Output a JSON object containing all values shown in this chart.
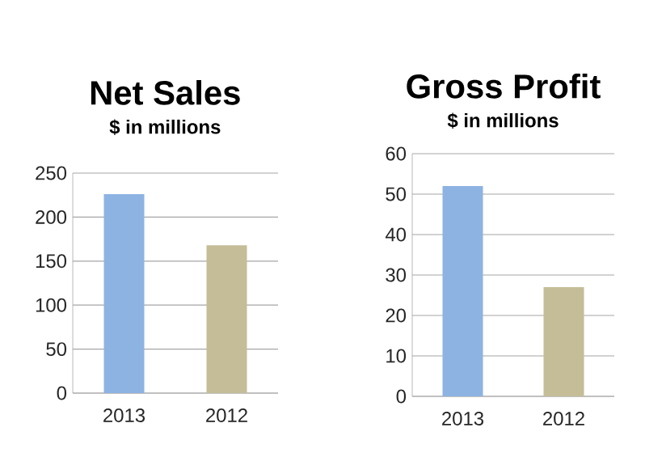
{
  "chart_data": [
    {
      "type": "bar",
      "title": "Net Sales",
      "subtitle": "$ in millions",
      "categories": [
        "2013",
        "2012"
      ],
      "values": [
        226,
        168
      ],
      "colors": [
        "#8db3e2",
        "#c4bd97"
      ],
      "ylim": [
        0,
        250
      ],
      "yticks": [
        0,
        50,
        100,
        150,
        200,
        250
      ],
      "grid": "y"
    },
    {
      "type": "bar",
      "title": "Gross Profit",
      "subtitle": "$ in millions",
      "categories": [
        "2013",
        "2012"
      ],
      "values": [
        52,
        27
      ],
      "colors": [
        "#8db3e2",
        "#c4bd97"
      ],
      "ylim": [
        0,
        60
      ],
      "yticks": [
        0,
        10,
        20,
        30,
        40,
        50,
        60
      ],
      "grid": "y"
    }
  ]
}
